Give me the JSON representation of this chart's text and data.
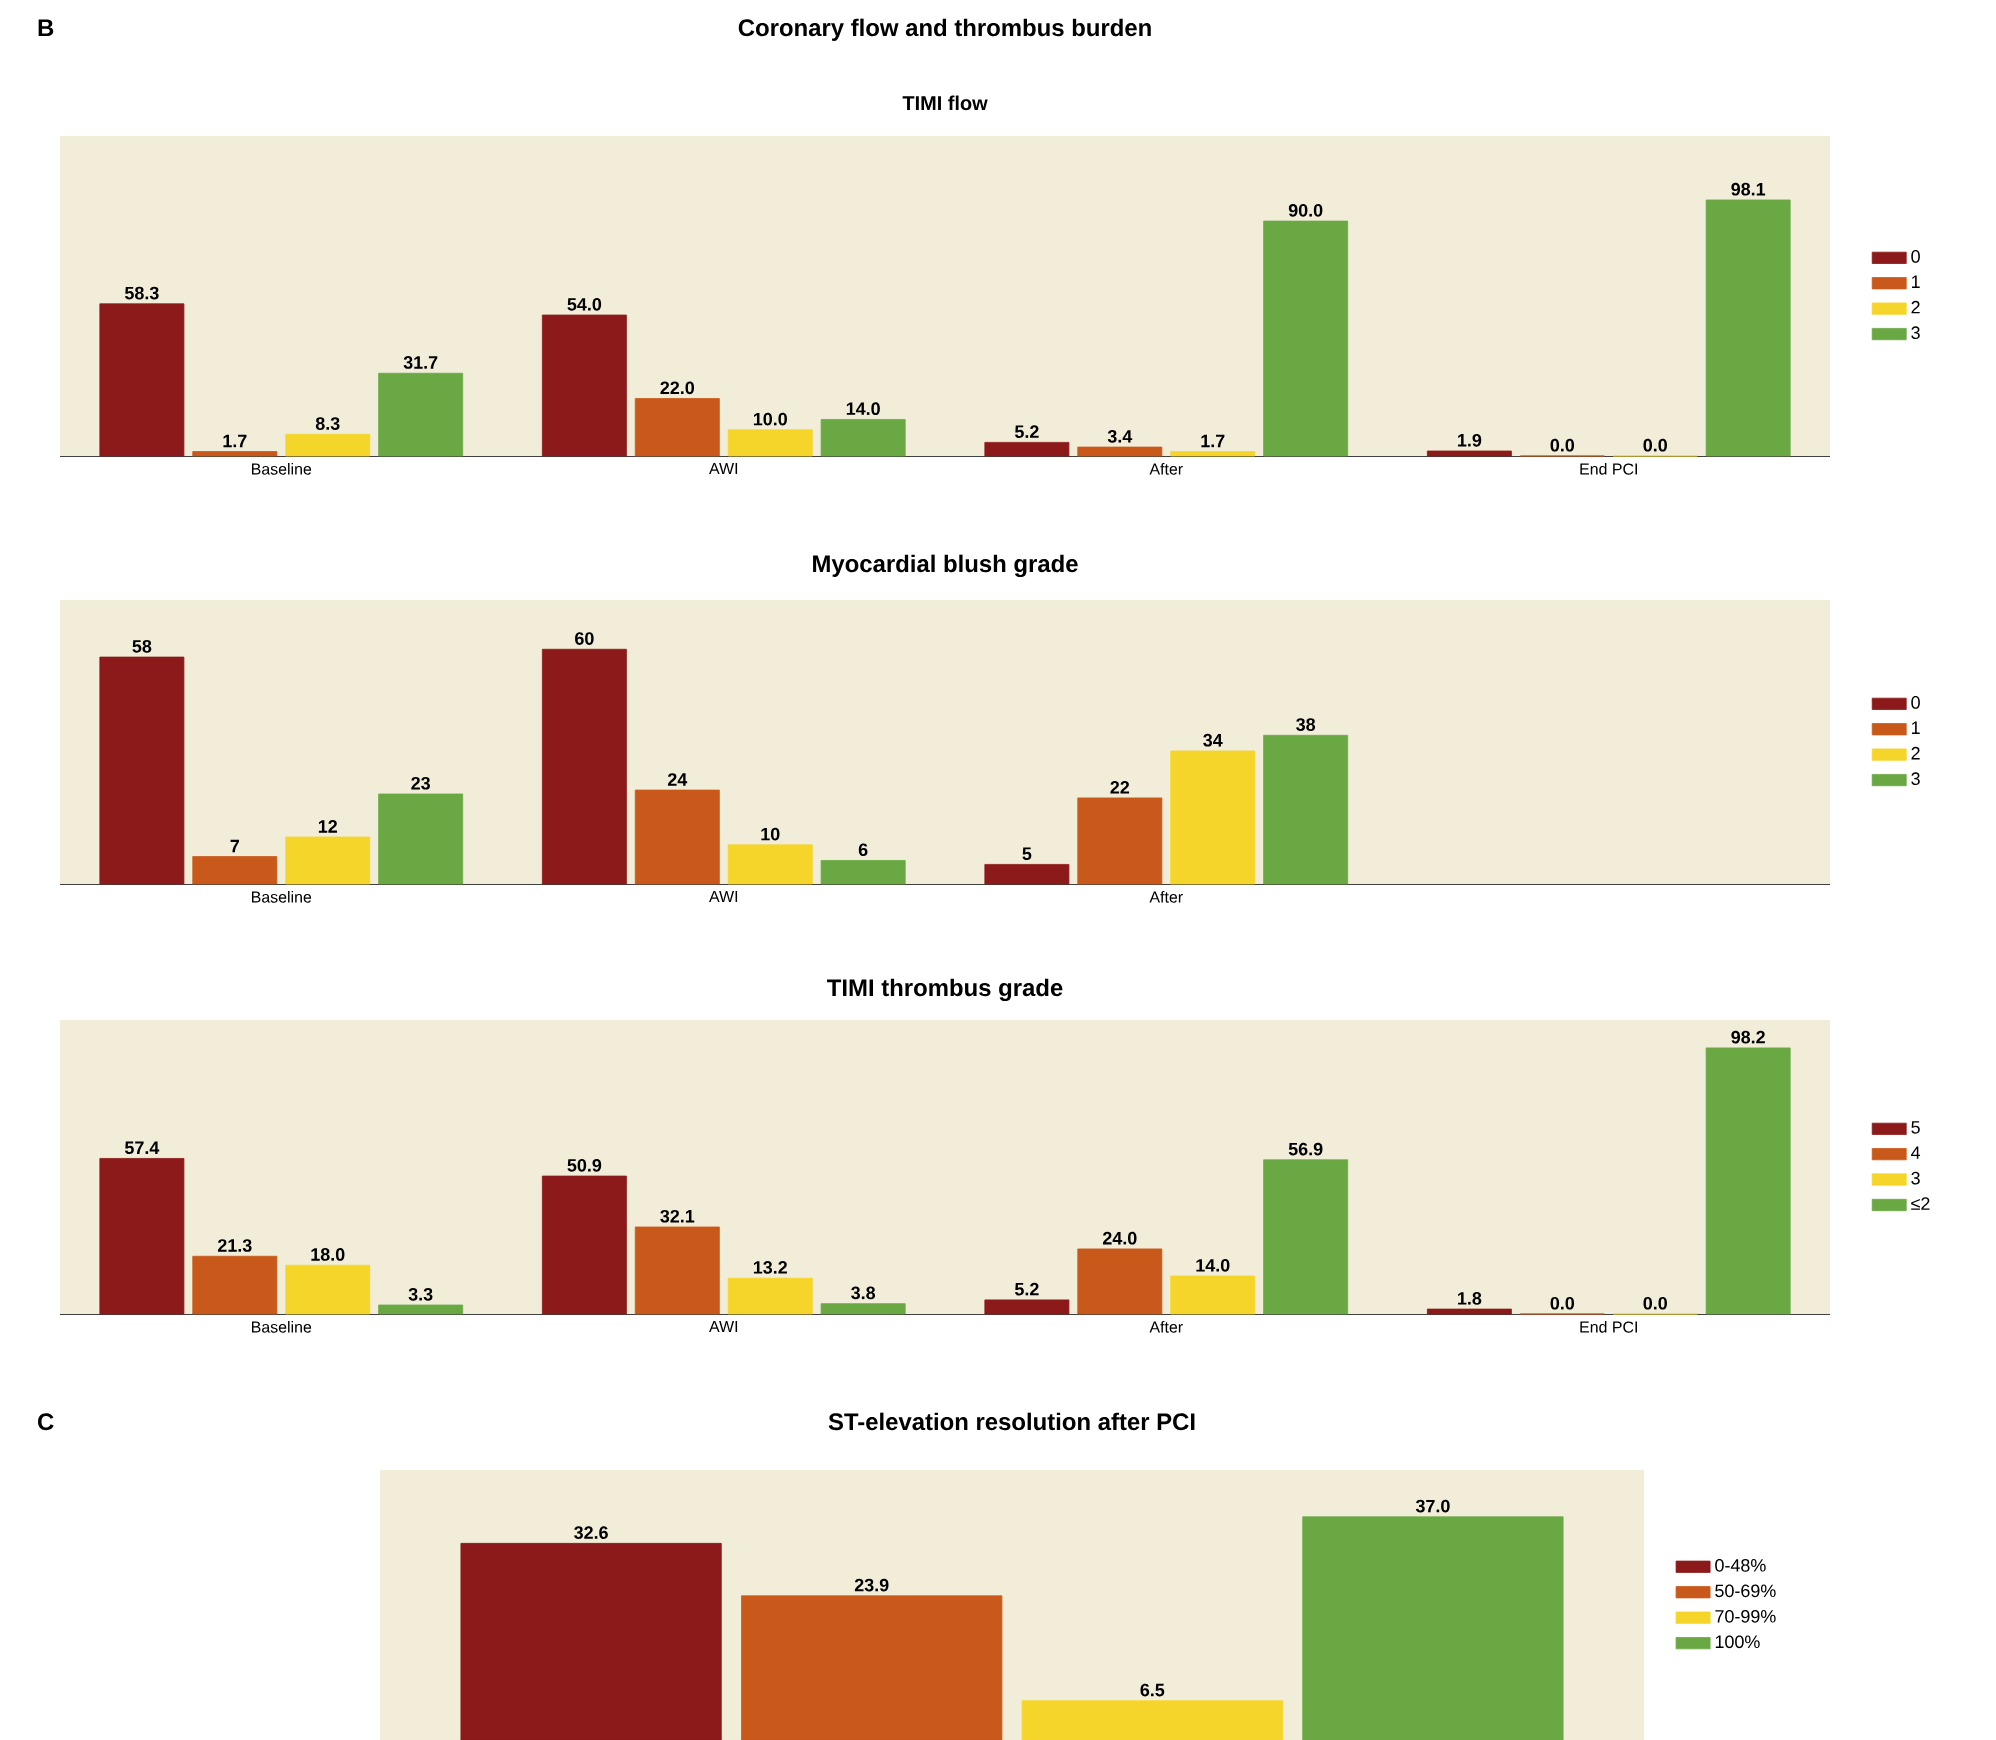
{
  "chart_data": [
    {
      "type": "bar",
      "title": "Coronary flow and thrombus burden",
      "subtitle": "TIMI flow",
      "annotations": [
        "B"
      ],
      "categories": [
        "Baseline",
        "AWI",
        "After",
        "End PCI"
      ],
      "legend": "right",
      "series": [
        {
          "name": "0",
          "color": "#8c1a1a",
          "values": [
            58.3,
            54.0,
            5.2,
            1.9
          ],
          "value_labels": [
            "58.3",
            "54.0",
            "5.2",
            "1.9"
          ]
        },
        {
          "name": "1",
          "color": "#c9591b",
          "values": [
            1.7,
            22.0,
            3.4,
            0.0
          ],
          "value_labels": [
            "1.7",
            "22.0",
            "3.4",
            "0.0"
          ]
        },
        {
          "name": "2",
          "color": "#f6d52a",
          "values": [
            8.3,
            10.0,
            1.7,
            0.0
          ],
          "value_labels": [
            "8.3",
            "10.0",
            "1.7",
            "0.0"
          ]
        },
        {
          "name": "3",
          "color": "#6aa844",
          "values": [
            31.7,
            14.0,
            90.0,
            98.1
          ],
          "value_labels": [
            "31.7",
            "14.0",
            "90.0",
            "98.1"
          ]
        }
      ]
    },
    {
      "type": "bar",
      "title": "Myocardial blush grade",
      "categories": [
        "Baseline",
        "AWI",
        "After"
      ],
      "data_labels": true,
      "legend": "right",
      "series": [
        {
          "name": "0",
          "color": "#8c1a1a",
          "values": [
            58,
            60,
            5
          ]
        },
        {
          "name": "1",
          "color": "#c9591b",
          "values": [
            7,
            24,
            22
          ]
        },
        {
          "name": "2",
          "color": "#f6d52a",
          "values": [
            12,
            10,
            34
          ]
        },
        {
          "name": "3",
          "color": "#6aa844",
          "values": [
            23,
            6,
            38
          ]
        }
      ]
    },
    {
      "type": "bar",
      "title": "TIMI thrombus grade",
      "categories": [
        "Baseline",
        "AWI",
        "After",
        "End PCI"
      ],
      "legend": "right",
      "series": [
        {
          "name": "5",
          "color": "#8c1a1a",
          "values": [
            57.4,
            50.9,
            5.2,
            1.8
          ],
          "value_labels": [
            "57.4",
            "50.9",
            "5.2",
            "1.8"
          ]
        },
        {
          "name": "4",
          "color": "#c9591b",
          "values": [
            21.3,
            32.1,
            24.0,
            0.0
          ],
          "value_labels": [
            "21.3",
            "32.1",
            "24.0",
            "0.0"
          ]
        },
        {
          "name": "3",
          "color": "#f6d52a",
          "values": [
            18.0,
            13.2,
            14.0,
            0.0
          ],
          "value_labels": [
            "18.0",
            "13.2",
            "14.0",
            "0.0"
          ]
        },
        {
          "name": "≤2",
          "color": "#6aa844",
          "values": [
            3.3,
            3.8,
            56.9,
            98.2
          ],
          "value_labels": [
            "3.3",
            "3.8",
            "56.9",
            "98.2"
          ]
        }
      ]
    },
    {
      "type": "bar",
      "title": "ST-elevation resolution after PCI",
      "annotations": [
        "C"
      ],
      "categories": [
        null
      ],
      "legend": "right",
      "series": [
        {
          "name": "0-48%",
          "color": "#8c1a1a",
          "values": [
            32.6
          ],
          "value_labels": [
            "32.6"
          ]
        },
        {
          "name": "50-69%",
          "color": "#c9591b",
          "values": [
            23.9
          ],
          "value_labels": [
            "23.9"
          ]
        },
        {
          "name": "70-99%",
          "color": "#f6d52a",
          "values": [
            6.5
          ],
          "value_labels": [
            "6.5"
          ]
        },
        {
          "name": "100%",
          "color": "#6aa844",
          "values": [
            37.0
          ],
          "value_labels": [
            "37.0"
          ]
        }
      ]
    }
  ]
}
